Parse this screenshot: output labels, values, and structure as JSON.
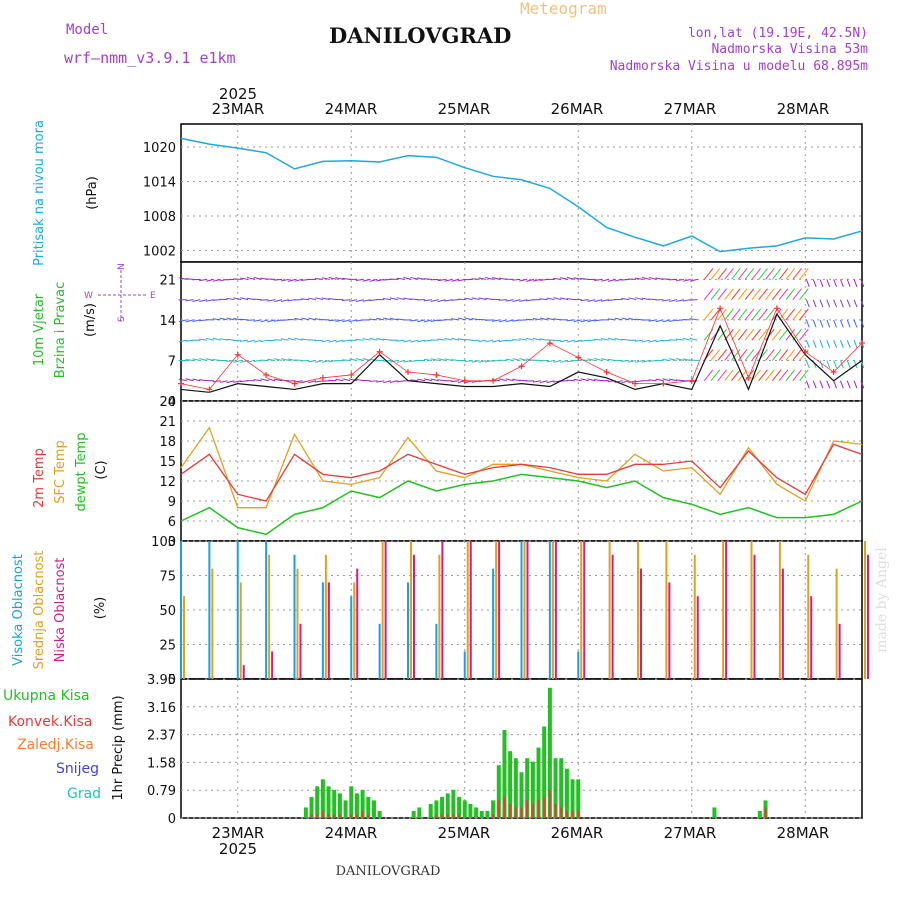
{
  "header": {
    "model_label": "Model",
    "model_name": "wrf—nmm_v3.9.1  e1km",
    "product": "Meteogram",
    "station": "DANILOVGRAD",
    "lonlat": "lon,lat (19.19E, 42.5N)",
    "elevation": "Nadmorska Visina 53m",
    "model_elevation": "Nadmorska Visina u modelu 68.895m"
  },
  "footer": {
    "station": "DANILOVGRAD",
    "credit": "made by Angel"
  },
  "colors": {
    "pressure": "#1fa8e0",
    "wind_speed": "#111111",
    "gust": "#ff3333",
    "t2m": "#e63b3b",
    "sfc": "#e0a020",
    "dewpt": "#22c022",
    "cloud_high": "#1aa0e0",
    "cloud_mid": "#e0a020",
    "cloud_low": "#cc1f8a",
    "precip_total": "#22c022",
    "precip_conv": "#e63b3b",
    "precip_frz": "#ff7a30",
    "snow": "#4040e0",
    "hail": "#20c0c0",
    "axis_label": "#1fa8e0",
    "title_purple": "#a040d0"
  },
  "chart_data": [
    {
      "id": "pressure",
      "type": "line",
      "ylabel_1": "Pritisak na nivou mora",
      "ylabel_2": "(hPa)",
      "ylim": [
        1000,
        1024
      ],
      "yticks": [
        1002,
        1008,
        1014,
        1020
      ],
      "x_days": [
        0,
        0.25,
        0.5,
        0.75,
        1,
        1.25,
        1.5,
        1.75,
        2,
        2.25,
        2.5,
        2.75,
        3,
        3.25,
        3.5,
        3.75,
        4,
        4.25,
        4.5,
        4.75,
        5,
        5.25,
        5.5,
        5.75,
        6
      ],
      "series": [
        {
          "values": [
            1021.5,
            1020.5,
            1019.8,
            1019.0,
            1016.2,
            1017.5,
            1017.6,
            1017.4,
            1018.5,
            1018.2,
            1016.4,
            1014.9,
            1014.3,
            1012.8,
            1009.6,
            1006.0,
            1004.3,
            1002.8,
            1004.5,
            1001.8,
            1002.4,
            1002.8,
            1004.2,
            1004.0,
            1005.4
          ]
        }
      ]
    },
    {
      "id": "wind",
      "type": "line",
      "ylabel_1": "10m Vjetar",
      "ylabel_2": "Brzina i Pravac",
      "ylabel_3": "(m/s)",
      "compass": {
        "n": "N",
        "s": "S",
        "e": "E",
        "w": "W"
      },
      "ylim": [
        0,
        24
      ],
      "yticks": [
        0,
        7,
        14,
        21
      ],
      "x_days": [
        0,
        0.25,
        0.5,
        0.75,
        1,
        1.25,
        1.5,
        1.75,
        2,
        2.25,
        2.5,
        2.75,
        3,
        3.25,
        3.5,
        3.75,
        4,
        4.25,
        4.5,
        4.75,
        5,
        5.25,
        5.5,
        5.75,
        6
      ],
      "series": [
        {
          "id": "speed",
          "values": [
            2.0,
            1.5,
            3.0,
            2.5,
            2.0,
            3.0,
            3.0,
            8.0,
            3.5,
            3.0,
            2.5,
            2.5,
            3.0,
            2.5,
            5.0,
            4.0,
            2.0,
            3.0,
            2.0,
            13.0,
            2.0,
            15.0,
            8.0,
            3.5,
            7.0
          ]
        },
        {
          "id": "gust",
          "values": [
            3.0,
            2.0,
            8.0,
            4.5,
            3.0,
            4.0,
            4.5,
            8.5,
            5.0,
            4.5,
            3.5,
            3.5,
            6.0,
            10.0,
            7.5,
            5.0,
            3.0,
            3.0,
            3.5,
            16.0,
            4.0,
            16.0,
            8.5,
            5.0,
            10.0
          ]
        }
      ]
    },
    {
      "id": "temperature",
      "type": "line",
      "ylabel_1": "2m Temp",
      "ylabel_2": "SFC Temp",
      "ylabel_3": "dewpt Temp",
      "ylabel_4": "(C)",
      "ylim": [
        3,
        24
      ],
      "yticks": [
        3,
        6,
        9,
        12,
        15,
        18,
        21,
        24
      ],
      "x_days": [
        0,
        0.25,
        0.5,
        0.75,
        1,
        1.25,
        1.5,
        1.75,
        2,
        2.25,
        2.5,
        2.75,
        3,
        3.25,
        3.5,
        3.75,
        4,
        4.25,
        4.5,
        4.75,
        5,
        5.25,
        5.5,
        5.75,
        6
      ],
      "series": [
        {
          "id": "t2m",
          "values": [
            13.0,
            16.0,
            10.0,
            9.0,
            16.0,
            13.0,
            12.5,
            13.5,
            16.0,
            14.5,
            13.0,
            14.0,
            14.5,
            14.0,
            13.0,
            13.0,
            14.5,
            14.5,
            15.0,
            11.0,
            16.5,
            12.5,
            10.0,
            17.5,
            16.0
          ]
        },
        {
          "id": "sfc",
          "values": [
            14.0,
            20.0,
            8.0,
            8.0,
            19.0,
            12.0,
            11.5,
            12.5,
            18.5,
            13.5,
            12.5,
            14.5,
            14.5,
            13.5,
            12.5,
            12.0,
            16.0,
            13.5,
            14.0,
            10.0,
            17.0,
            11.5,
            9.0,
            18.0,
            17.5
          ]
        },
        {
          "id": "dewpt",
          "values": [
            6.0,
            8.0,
            5.0,
            4.0,
            7.0,
            8.0,
            10.5,
            9.5,
            12.0,
            10.5,
            11.5,
            12.0,
            13.0,
            12.5,
            12.0,
            11.0,
            12.0,
            9.5,
            8.5,
            7.0,
            8.0,
            6.5,
            6.5,
            7.0,
            9.0
          ]
        }
      ]
    },
    {
      "id": "cloud",
      "type": "bar",
      "ylabel_1": "Visoka Oblacnost",
      "ylabel_2": "Srednja Oblacnost",
      "ylabel_3": "Niska Oblacnost",
      "ylabel_4": "(%)",
      "ylim": [
        0,
        100
      ],
      "yticks": [
        0,
        25,
        50,
        75,
        100
      ],
      "x_days": [
        0,
        0.25,
        0.5,
        0.75,
        1,
        1.25,
        1.5,
        1.75,
        2,
        2.25,
        2.5,
        2.75,
        3,
        3.25,
        3.5,
        3.75,
        4,
        4.25,
        4.5,
        4.75,
        5,
        5.25,
        5.5,
        5.75,
        6
      ],
      "series": [
        {
          "id": "high",
          "values": [
            100,
            100,
            100,
            100,
            90,
            70,
            60,
            40,
            70,
            40,
            20,
            80,
            100,
            100,
            20,
            0,
            0,
            0,
            0,
            0,
            0,
            0,
            0,
            0,
            0
          ]
        },
        {
          "id": "mid",
          "values": [
            60,
            80,
            70,
            90,
            80,
            90,
            70,
            100,
            100,
            90,
            100,
            100,
            100,
            100,
            100,
            100,
            100,
            100,
            90,
            100,
            100,
            100,
            90,
            80,
            100
          ]
        },
        {
          "id": "low",
          "values": [
            0,
            0,
            10,
            20,
            40,
            70,
            80,
            100,
            90,
            100,
            100,
            100,
            100,
            100,
            100,
            90,
            80,
            70,
            60,
            100,
            90,
            80,
            60,
            40,
            90
          ]
        }
      ]
    },
    {
      "id": "precip",
      "type": "bar",
      "ylabel_1": "1hr Precip (mm)",
      "legend": [
        "Ukupna  Kisa",
        "Konvek.Kisa",
        "Zaledj.Kisa",
        "Snijeg",
        "Grad"
      ],
      "ylim": [
        0,
        3.95
      ],
      "yticks": [
        0,
        0.79,
        1.58,
        2.37,
        3.16,
        3.95
      ],
      "x_days": [
        1.1,
        1.15,
        1.2,
        1.25,
        1.3,
        1.35,
        1.4,
        1.45,
        1.5,
        1.55,
        1.6,
        1.65,
        1.7,
        1.75,
        2.05,
        2.1,
        2.2,
        2.25,
        2.3,
        2.35,
        2.4,
        2.45,
        2.5,
        2.55,
        2.6,
        2.65,
        2.7,
        2.75,
        2.8,
        2.85,
        2.9,
        2.95,
        3.0,
        3.05,
        3.1,
        3.15,
        3.2,
        3.25,
        3.3,
        3.35,
        3.4,
        3.45,
        3.5,
        4.7,
        5.1,
        5.15
      ],
      "series": [
        {
          "id": "total",
          "values": [
            0.3,
            0.6,
            0.9,
            1.1,
            0.9,
            0.8,
            0.7,
            0.5,
            0.9,
            0.7,
            0.8,
            0.6,
            0.5,
            0.2,
            0.2,
            0.3,
            0.4,
            0.5,
            0.6,
            0.7,
            0.8,
            0.6,
            0.5,
            0.4,
            0.3,
            0.2,
            0.2,
            0.5,
            1.5,
            2.5,
            1.9,
            1.7,
            1.3,
            1.7,
            1.6,
            2.0,
            2.6,
            3.7,
            1.7,
            1.7,
            1.4,
            1.1,
            1.1,
            0.3,
            0.2,
            0.5
          ]
        },
        {
          "id": "convective",
          "values": [
            0,
            0.1,
            0.1,
            0.2,
            0.1,
            0.1,
            0.1,
            0,
            0.1,
            0.1,
            0.2,
            0.1,
            0,
            0,
            0,
            0,
            0,
            0.1,
            0.1,
            0.1,
            0.1,
            0.1,
            0,
            0,
            0,
            0,
            0,
            0.1,
            0.5,
            0.6,
            0.4,
            0.3,
            0.3,
            0.5,
            0.4,
            0.5,
            0.6,
            0.8,
            0.4,
            0.3,
            0.2,
            0.2,
            0.2,
            0,
            0,
            0.3
          ]
        }
      ]
    }
  ],
  "x_axis": {
    "year": "2025",
    "ticks": [
      "23MAR",
      "24MAR",
      "25MAR",
      "26MAR",
      "27MAR",
      "28MAR"
    ],
    "start_offset_days": 0,
    "days_range": [
      -0.5,
      5.5
    ]
  }
}
